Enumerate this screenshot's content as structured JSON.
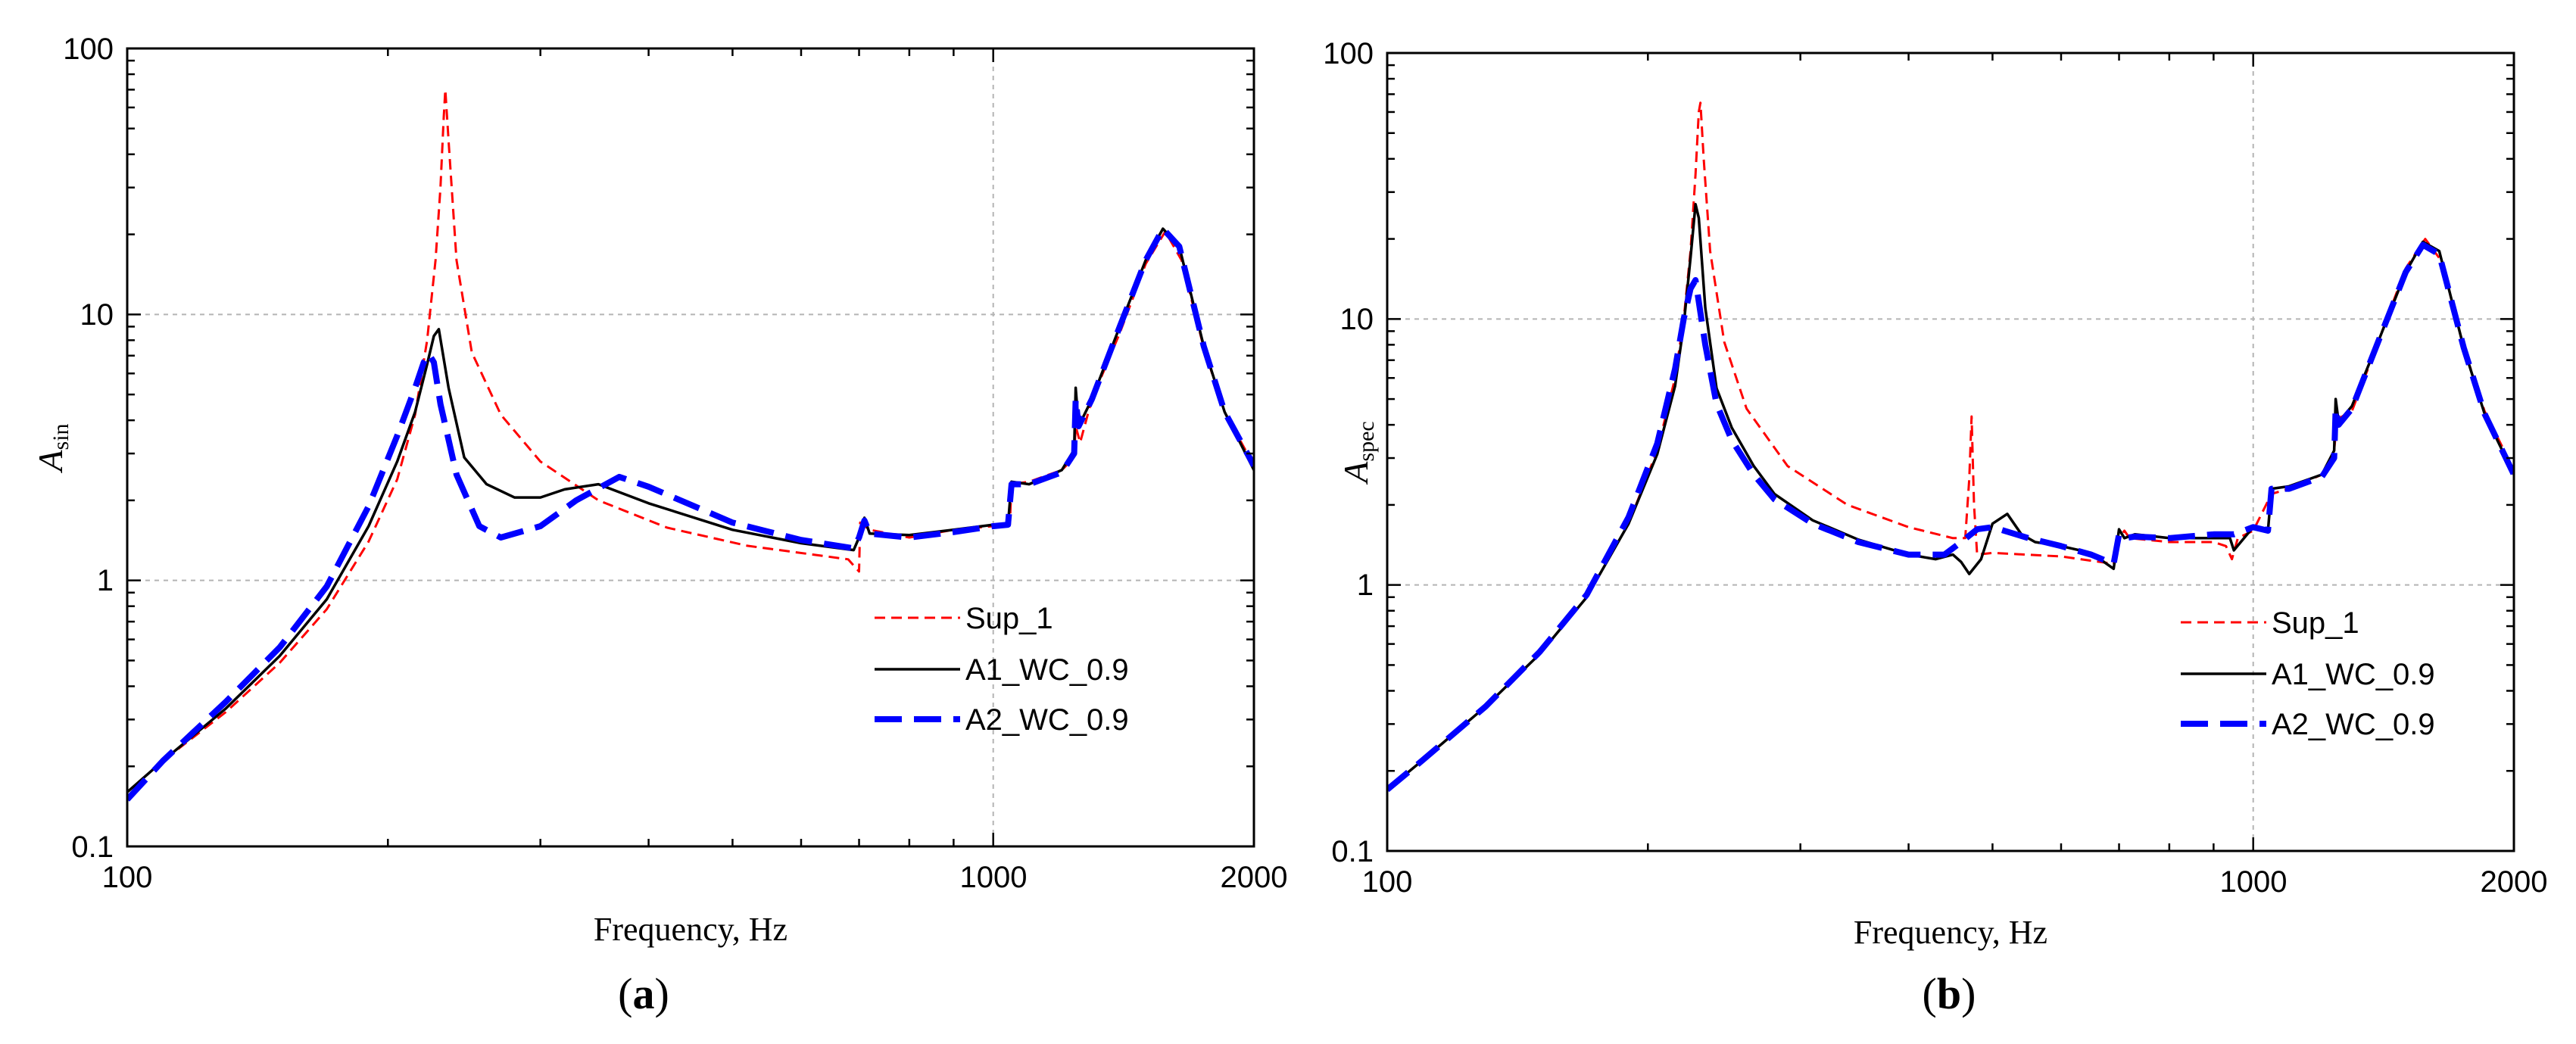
{
  "chart_data": [
    {
      "type": "line",
      "panel": "a",
      "panel_label": [
        "(",
        "a",
        ")"
      ],
      "xlabel": "Frequency, Hz",
      "ylabel": "A",
      "ylabel_sub": "sin",
      "x_scale": "log",
      "y_scale": "log",
      "xlim": [
        100,
        2000
      ],
      "ylim": [
        0.1,
        100
      ],
      "x_ticks": [
        100,
        1000,
        2000
      ],
      "x_tick_labels": [
        "100",
        "1000",
        "2000"
      ],
      "y_ticks": [
        0.1,
        1,
        10,
        100
      ],
      "y_tick_labels": [
        "0.1",
        "1",
        "10",
        "100"
      ],
      "grid": true,
      "legend_position": "lower-right",
      "series": [
        {
          "name": "Sup_1",
          "color": "#ff0000",
          "style": "dashed-thin",
          "x": [
            100,
            110,
            130,
            150,
            170,
            190,
            205,
            215,
            222,
            227,
            230,
            232,
            233,
            235,
            240,
            250,
            270,
            300,
            350,
            420,
            520,
            620,
            680,
            700,
            702,
            720,
            800,
            900,
            1000,
            1045,
            1050,
            1100,
            1200,
            1240,
            1245,
            1260,
            1300,
            1400,
            1500,
            1580,
            1650,
            1750,
            1850,
            2000
          ],
          "y": [
            0.16,
            0.21,
            0.32,
            0.49,
            0.78,
            1.4,
            2.4,
            4.2,
            8,
            16,
            30,
            55,
            70,
            45,
            16,
            7.2,
            4.2,
            2.8,
            2,
            1.58,
            1.35,
            1.25,
            1.2,
            1.08,
            1.65,
            1.55,
            1.45,
            1.55,
            1.6,
            1.62,
            2.3,
            2.35,
            2.6,
            2.9,
            3.8,
            3.3,
            4.8,
            8.5,
            15.5,
            20.5,
            16,
            7.5,
            4.3,
            2.7
          ]
        },
        {
          "name": "A1_WC_0.9",
          "color": "#000000",
          "style": "solid",
          "x": [
            100,
            110,
            130,
            150,
            170,
            190,
            205,
            215,
            222,
            226,
            229,
            235,
            245,
            260,
            280,
            300,
            320,
            350,
            400,
            500,
            600,
            690,
            700,
            710,
            720,
            800,
            900,
            1000,
            1040,
            1050,
            1100,
            1200,
            1240,
            1245,
            1255,
            1300,
            1400,
            1500,
            1570,
            1640,
            1750,
            1850,
            2000
          ],
          "y": [
            0.16,
            0.21,
            0.33,
            0.52,
            0.85,
            1.6,
            2.8,
            4.3,
            6.5,
            8.3,
            8.8,
            5.3,
            2.9,
            2.3,
            2.05,
            2.05,
            2.2,
            2.3,
            1.95,
            1.55,
            1.38,
            1.3,
            1.45,
            1.72,
            1.5,
            1.48,
            1.55,
            1.62,
            1.62,
            2.35,
            2.3,
            2.6,
            3.1,
            5.3,
            3.8,
            4.8,
            9,
            16,
            21,
            18,
            7.6,
            4.3,
            2.6
          ]
        },
        {
          "name": "A2_WC_0.9",
          "color": "#0000ff",
          "style": "dashed-thick",
          "x": [
            100,
            110,
            130,
            150,
            170,
            190,
            205,
            215,
            220,
            223,
            226,
            230,
            240,
            255,
            270,
            300,
            330,
            370,
            400,
            500,
            600,
            690,
            700,
            710,
            720,
            800,
            900,
            1000,
            1040,
            1050,
            1100,
            1200,
            1240,
            1245,
            1255,
            1300,
            1400,
            1500,
            1570,
            1640,
            1750,
            1850,
            2000
          ],
          "y": [
            0.15,
            0.21,
            0.35,
            0.56,
            0.95,
            1.9,
            3.5,
            5.3,
            6.6,
            7.1,
            6.6,
            4.6,
            2.5,
            1.6,
            1.45,
            1.6,
            2,
            2.45,
            2.25,
            1.65,
            1.42,
            1.32,
            1.45,
            1.68,
            1.5,
            1.45,
            1.52,
            1.6,
            1.62,
            2.3,
            2.3,
            2.55,
            3,
            4.8,
            3.8,
            4.8,
            9,
            16,
            21,
            18,
            7.6,
            4.3,
            2.7
          ]
        }
      ]
    },
    {
      "type": "line",
      "panel": "b",
      "panel_label": [
        "(",
        "b",
        ")"
      ],
      "xlabel": "Frequency, Hz",
      "ylabel": "A",
      "ylabel_sub": "spec",
      "x_scale": "log",
      "y_scale": "log",
      "xlim": [
        100,
        2000
      ],
      "ylim": [
        0.1,
        100
      ],
      "x_ticks": [
        100,
        1000,
        2000
      ],
      "x_tick_labels": [
        "100",
        "1000",
        "2000"
      ],
      "y_ticks": [
        0.1,
        1,
        10,
        100
      ],
      "y_tick_labels": [
        "0.1",
        "1",
        "10",
        "100"
      ],
      "grid": true,
      "legend_position": "lower-right",
      "series": [
        {
          "name": "Sup_1",
          "color": "#ff0000",
          "style": "dashed-thin",
          "x": [
            100,
            110,
            130,
            150,
            170,
            190,
            205,
            215,
            220,
            224,
            227,
            229,
            230,
            232,
            236,
            245,
            260,
            290,
            340,
            400,
            450,
            465,
            470,
            473,
            476,
            480,
            500,
            600,
            690,
            700,
            710,
            720,
            800,
            900,
            930,
            945,
            960,
            1000,
            1050,
            1100,
            1200,
            1240,
            1250,
            1300,
            1400,
            1500,
            1580,
            1650,
            1750,
            1850,
            2000
          ],
          "y": [
            0.17,
            0.22,
            0.35,
            0.55,
            0.9,
            1.7,
            3.2,
            6,
            10,
            18,
            35,
            60,
            65,
            40,
            18,
            8.2,
            4.6,
            2.8,
            2,
            1.65,
            1.5,
            1.5,
            2.5,
            4.3,
            2,
            1.3,
            1.32,
            1.28,
            1.2,
            1.5,
            1.6,
            1.5,
            1.45,
            1.45,
            1.4,
            1.25,
            1.5,
            1.6,
            2.2,
            2.3,
            2.6,
            3.2,
            4.2,
            4.5,
            8.5,
            15.5,
            20,
            16.5,
            7.8,
            4.5,
            2.7
          ]
        },
        {
          "name": "A1_WC_0.9",
          "color": "#000000",
          "style": "solid",
          "x": [
            100,
            110,
            130,
            150,
            170,
            190,
            205,
            215,
            220,
            224,
            227,
            229,
            233,
            240,
            250,
            265,
            280,
            310,
            350,
            400,
            430,
            450,
            460,
            470,
            485,
            500,
            520,
            540,
            560,
            600,
            650,
            690,
            700,
            710,
            730,
            800,
            900,
            940,
            950,
            1000,
            1040,
            1050,
            1100,
            1200,
            1240,
            1245,
            1255,
            1300,
            1400,
            1500,
            1570,
            1640,
            1750,
            1850,
            2000
          ],
          "y": [
            0.17,
            0.22,
            0.35,
            0.55,
            0.9,
            1.7,
            3.1,
            5.6,
            9.5,
            17,
            27,
            24,
            11,
            5.5,
            3.9,
            2.8,
            2.2,
            1.75,
            1.48,
            1.3,
            1.25,
            1.3,
            1.22,
            1.1,
            1.25,
            1.7,
            1.85,
            1.55,
            1.45,
            1.4,
            1.32,
            1.15,
            1.62,
            1.5,
            1.55,
            1.5,
            1.5,
            1.5,
            1.35,
            1.65,
            1.6,
            2.3,
            2.35,
            2.6,
            3.2,
            5,
            4.1,
            4.7,
            8.5,
            15,
            19.5,
            18,
            7.8,
            4.4,
            2.6
          ]
        },
        {
          "name": "A2_WC_0.9",
          "color": "#0000ff",
          "style": "dashed-thick",
          "x": [
            100,
            110,
            130,
            150,
            170,
            190,
            205,
            215,
            220,
            224,
            227,
            233,
            240,
            250,
            265,
            280,
            310,
            350,
            400,
            440,
            460,
            480,
            500,
            550,
            600,
            650,
            690,
            700,
            710,
            730,
            800,
            900,
            950,
            1000,
            1040,
            1050,
            1100,
            1200,
            1240,
            1245,
            1255,
            1300,
            1400,
            1500,
            1570,
            1640,
            1750,
            1850,
            2000
          ],
          "y": [
            0.17,
            0.22,
            0.35,
            0.56,
            0.92,
            1.8,
            3.4,
            6.5,
            10,
            13,
            14,
            8,
            4.8,
            3.5,
            2.6,
            2.1,
            1.7,
            1.45,
            1.3,
            1.3,
            1.45,
            1.62,
            1.65,
            1.5,
            1.4,
            1.3,
            1.2,
            1.55,
            1.5,
            1.52,
            1.5,
            1.55,
            1.55,
            1.65,
            1.6,
            2.3,
            2.3,
            2.55,
            3,
            4.6,
            4,
            4.6,
            8.5,
            15,
            19,
            17.5,
            7.8,
            4.4,
            2.6
          ]
        }
      ]
    }
  ]
}
